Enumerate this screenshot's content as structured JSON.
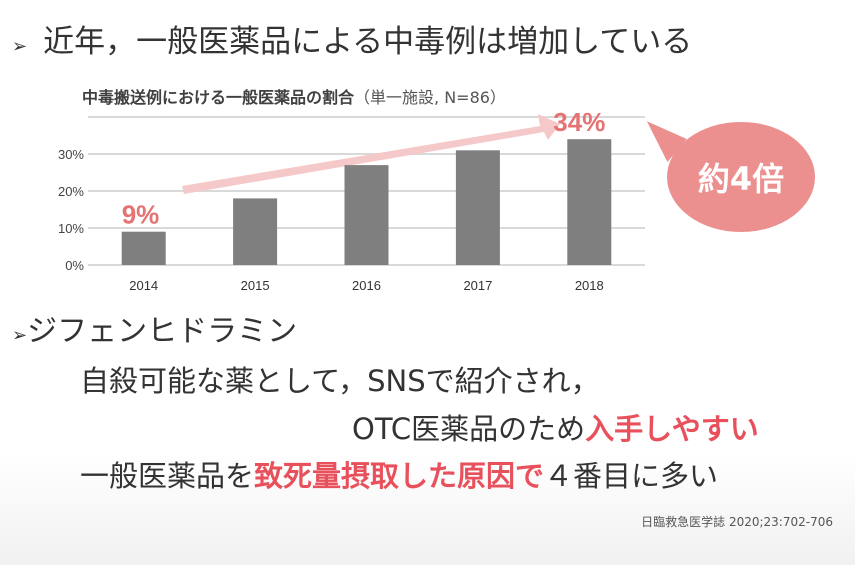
{
  "slide": {
    "bullet_symbol": "➢",
    "heading": "近年，一般医薬品による中毒例は増加している",
    "subheading": "ジフェンヒドラミン",
    "lines": {
      "line1": "自殺可能な薬として，SNSで紹介され，",
      "line2_plain": "OTC医薬品のため",
      "line2_highlight": "入手しやすい",
      "line3_plain_a": "一般医薬品を",
      "line3_highlight": "致死量摂取した原因で",
      "line3_plain_b": "４番目に多い"
    },
    "callout": "約4倍",
    "citation": "日臨救急医学誌 2020;23:702-706"
  },
  "colors": {
    "bar": "#7f7f7f",
    "accent": "#e8505b",
    "arrow": "#f5c9c9",
    "bubble": "#ec8f8f",
    "label": "#e57373"
  },
  "chart_data": {
    "type": "bar",
    "title": "中毒搬送例における一般医薬品の割合",
    "subtitle": "（単一施設, N=86）",
    "categories": [
      "2014",
      "2015",
      "2016",
      "2017",
      "2018"
    ],
    "values": [
      9,
      18,
      27,
      31,
      34
    ],
    "unit": "%",
    "ylim": [
      0,
      40
    ],
    "yticks": [
      "0%",
      "10%",
      "20%",
      "30%"
    ],
    "grid": true,
    "annotations": {
      "first": "9%",
      "last": "34%"
    }
  }
}
